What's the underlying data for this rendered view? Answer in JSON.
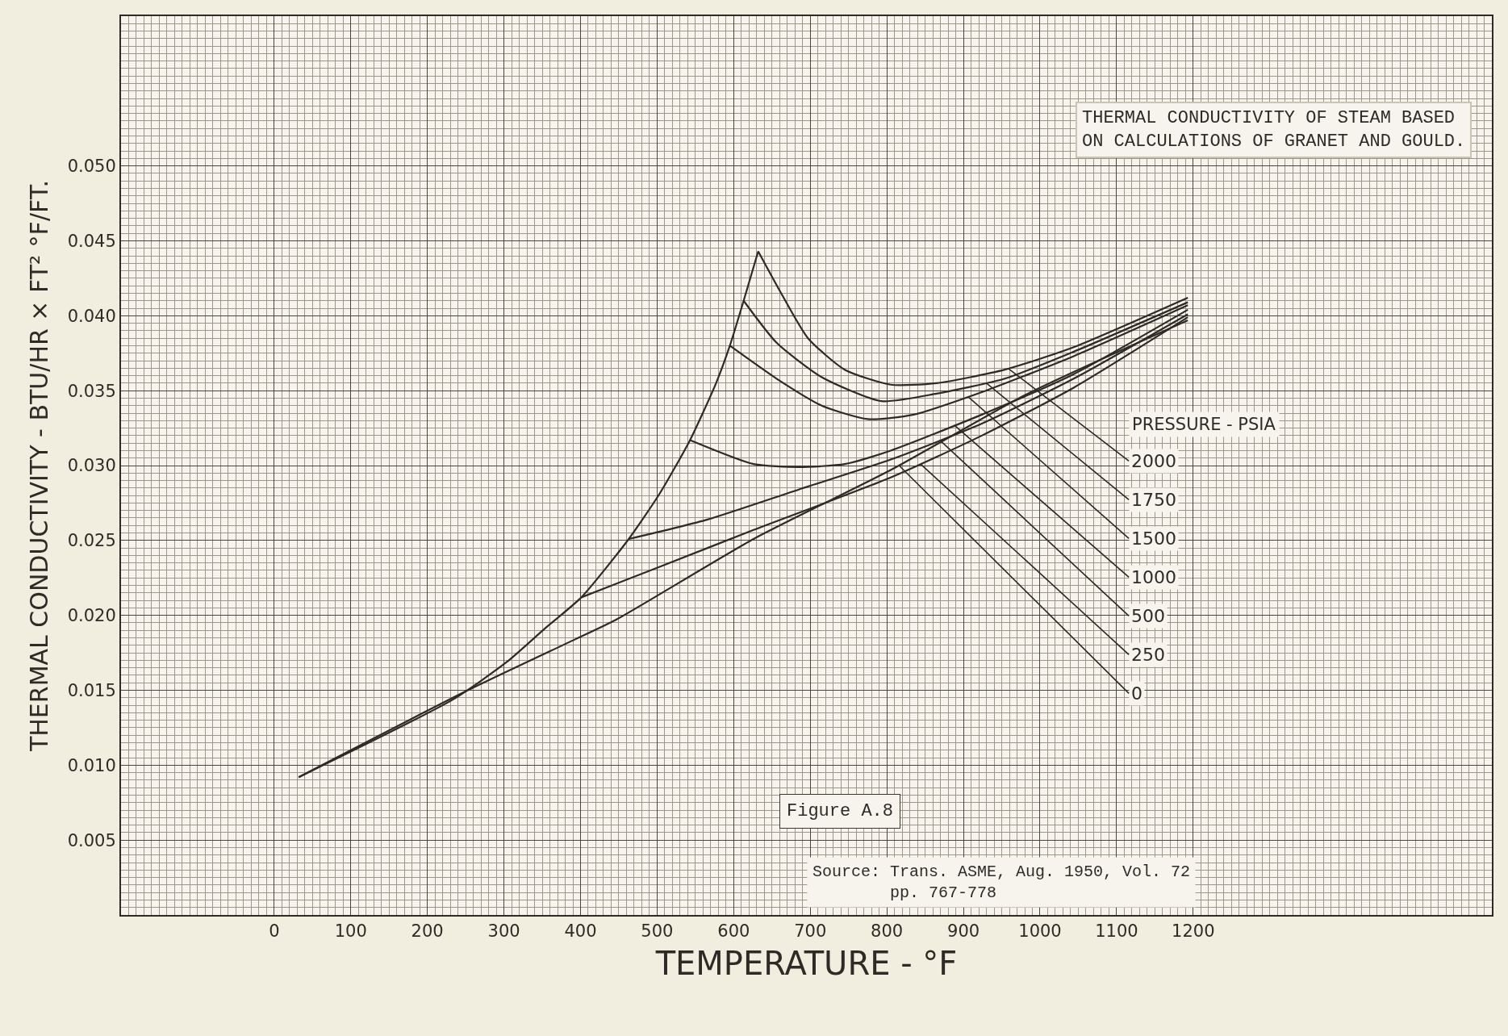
{
  "chart_data": {
    "type": "line",
    "title": "THERMAL CONDUCTIVITY OF STEAM BASED\nON CALCULATIONS OF GRANET AND GOULD.",
    "xlabel": "TEMPERATURE - °F",
    "ylabel": "THERMAL CONDUCTIVITY - BTU/HR × FT² °F/FT.",
    "legend_title": "PRESSURE - PSIA",
    "xlim": [
      -200,
      1590
    ],
    "ylim": [
      0,
      0.06
    ],
    "xticks": [
      0,
      100,
      200,
      300,
      400,
      500,
      600,
      700,
      800,
      900,
      1000,
      1100,
      1200
    ],
    "yticks": [
      {
        "value": 0.005,
        "label": "0.005"
      },
      {
        "value": 0.01,
        "label": "0.010"
      },
      {
        "value": 0.015,
        "label": "0.015"
      },
      {
        "value": 0.02,
        "label": "0.020"
      },
      {
        "value": 0.025,
        "label": "0.025"
      },
      {
        "value": 0.03,
        "label": "0.030"
      },
      {
        "value": 0.035,
        "label": "0.035"
      },
      {
        "value": 0.04,
        "label": "0.040"
      },
      {
        "value": 0.045,
        "label": "0.045"
      },
      {
        "value": 0.05,
        "label": "0.050"
      }
    ],
    "grid": true,
    "marker": "none",
    "line_style": "solid",
    "series": [
      {
        "color": "#2e2b26",
        "x": [
          32,
          234,
          304,
          353,
          401,
          463,
          503,
          543,
          577,
          595,
          613,
          632
        ],
        "values": [
          0.0092,
          0.0144,
          0.0169,
          0.0191,
          0.0212,
          0.0251,
          0.0281,
          0.0317,
          0.0355,
          0.038,
          0.041,
          0.0443
        ]
      },
      {
        "color": "#2e2b26",
        "x": [
          632,
          662,
          697,
          745,
          805,
          865,
          954,
          1044,
          1193
        ],
        "values": [
          0.0443,
          0.0415,
          0.0385,
          0.0364,
          0.0354,
          0.0355,
          0.0364,
          0.0379,
          0.0412
        ]
      },
      {
        "color": "#2e2b26",
        "x": [
          613,
          656,
          715,
          793,
          865,
          954,
          1044,
          1193
        ],
        "values": [
          0.041,
          0.0382,
          0.0359,
          0.0343,
          0.0348,
          0.0358,
          0.0376,
          0.0409
        ]
      },
      {
        "color": "#2e2b26",
        "x": [
          595,
          656,
          715,
          775,
          835,
          924,
          1044,
          1193
        ],
        "values": [
          0.038,
          0.0358,
          0.034,
          0.0331,
          0.0334,
          0.0349,
          0.0373,
          0.0407
        ]
      },
      {
        "color": "#2e2b26",
        "x": [
          543,
          626,
          685,
          745,
          805,
          924,
          1044,
          1193
        ],
        "values": [
          0.0317,
          0.0301,
          0.0299,
          0.0301,
          0.031,
          0.0334,
          0.0361,
          0.0404
        ]
      },
      {
        "color": "#2e2b26",
        "x": [
          463,
          566,
          685,
          805,
          924,
          1044,
          1193
        ],
        "values": [
          0.0251,
          0.0264,
          0.0284,
          0.0304,
          0.0328,
          0.0358,
          0.0401
        ]
      },
      {
        "color": "#2e2b26",
        "x": [
          401,
          506,
          626,
          805,
          924,
          1044,
          1193
        ],
        "values": [
          0.0212,
          0.0233,
          0.0257,
          0.0292,
          0.032,
          0.0352,
          0.0399
        ]
      },
      {
        "color": "#2e2b26",
        "x": [
          32,
          249,
          393,
          446,
          626,
          805,
          984,
          1193
        ],
        "values": [
          0.0092,
          0.0149,
          0.0184,
          0.0197,
          0.0251,
          0.0297,
          0.0348,
          0.0397
        ]
      }
    ],
    "annotations": [
      {
        "text": "2000",
        "x": 958,
        "y": 0.0365
      },
      {
        "text": "1750",
        "x": 930,
        "y": 0.0355
      },
      {
        "text": "1500",
        "x": 906,
        "y": 0.0346
      },
      {
        "text": "1000",
        "x": 888,
        "y": 0.0327
      },
      {
        "text": "500",
        "x": 869,
        "y": 0.0317
      },
      {
        "text": "250",
        "x": 844,
        "y": 0.0301
      },
      {
        "text": "0",
        "x": 816,
        "y": 0.03
      },
      "Figure A.8",
      "Source: Trans. ASME, Aug. 1950, Vol. 72\n        pp. 767-778"
    ]
  }
}
